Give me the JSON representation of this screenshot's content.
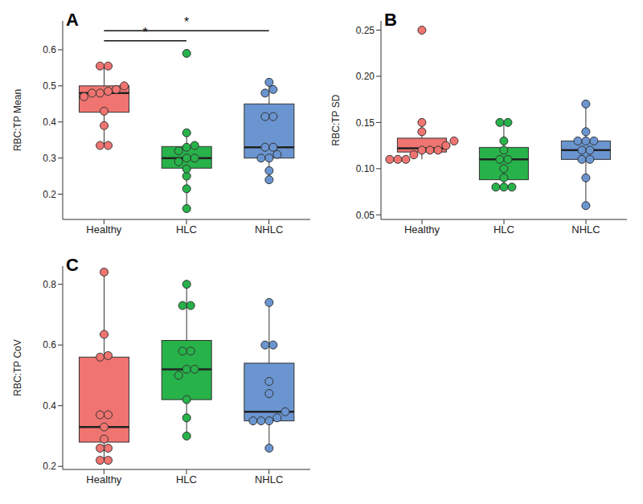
{
  "chart_data": [
    {
      "type": "box",
      "title": "A",
      "y_label": "RBC:TP Mean",
      "categories": [
        "Healthy",
        "HLC",
        "NHLC"
      ],
      "colors": [
        "#f07470",
        "#27b24a",
        "#6a95d0"
      ],
      "points": [
        [
          0.555,
          0.555,
          0.5,
          0.49,
          0.485,
          0.48,
          0.48,
          0.47,
          0.43,
          0.39,
          0.335,
          0.335
        ],
        [
          0.59,
          0.37,
          0.335,
          0.33,
          0.32,
          0.3,
          0.3,
          0.29,
          0.27,
          0.25,
          0.215,
          0.16
        ],
        [
          0.51,
          0.49,
          0.48,
          0.415,
          0.415,
          0.33,
          0.33,
          0.31,
          0.3,
          0.3,
          0.265,
          0.24
        ]
      ],
      "boxes": [
        {
          "q1": 0.427,
          "median": 0.48,
          "q3": 0.5,
          "whisker_low": 0.335,
          "whisker_high": 0.555
        },
        {
          "q1": 0.272,
          "median": 0.3,
          "q3": 0.332,
          "whisker_low": 0.16,
          "whisker_high": 0.37
        },
        {
          "q1": 0.3,
          "median": 0.33,
          "q3": 0.45,
          "whisker_low": 0.24,
          "whisker_high": 0.51
        }
      ],
      "ylim": [
        0.13,
        0.68
      ],
      "yticks": [
        0.2,
        0.3,
        0.4,
        0.5,
        0.6
      ],
      "annotations": [
        {
          "text": "*",
          "from": "Healthy",
          "to": "HLC"
        },
        {
          "text": "*",
          "from": "Healthy",
          "to": "NHLC"
        }
      ]
    },
    {
      "type": "box",
      "title": "B",
      "y_label": "RBC:TP SD",
      "categories": [
        "Healthy",
        "HLC",
        "NHLC"
      ],
      "colors": [
        "#f07470",
        "#27b24a",
        "#6a95d0"
      ],
      "points": [
        [
          0.25,
          0.15,
          0.14,
          0.13,
          0.125,
          0.12,
          0.12,
          0.12,
          0.115,
          0.11,
          0.11,
          0.11
        ],
        [
          0.15,
          0.15,
          0.13,
          0.12,
          0.11,
          0.11,
          0.1,
          0.09,
          0.08,
          0.08,
          0.08
        ],
        [
          0.17,
          0.14,
          0.13,
          0.13,
          0.13,
          0.12,
          0.12,
          0.11,
          0.11,
          0.09,
          0.06
        ]
      ],
      "boxes": [
        {
          "q1": 0.118,
          "median": 0.122,
          "q3": 0.133,
          "whisker_low": 0.11,
          "whisker_high": 0.15
        },
        {
          "q1": 0.088,
          "median": 0.11,
          "q3": 0.123,
          "whisker_low": 0.08,
          "whisker_high": 0.15
        },
        {
          "q1": 0.11,
          "median": 0.12,
          "q3": 0.13,
          "whisker_low": 0.06,
          "whisker_high": 0.17
        }
      ],
      "ylim": [
        0.045,
        0.26
      ],
      "yticks": [
        0.05,
        {
          "value": 0.1,
          "label": "0.10"
        },
        0.15,
        {
          "value": 0.2,
          "label": "0.20"
        },
        0.25
      ]
    },
    {
      "type": "box",
      "title": "C",
      "y_label": "RBC:TP CoV",
      "categories": [
        "Healthy",
        "HLC",
        "NHLC"
      ],
      "colors": [
        "#f07470",
        "#27b24a",
        "#6a95d0"
      ],
      "points": [
        [
          0.84,
          0.635,
          0.565,
          0.56,
          0.37,
          0.37,
          0.33,
          0.29,
          0.26,
          0.26,
          0.22,
          0.22
        ],
        [
          0.8,
          0.73,
          0.73,
          0.58,
          0.58,
          0.52,
          0.52,
          0.5,
          0.42,
          0.36,
          0.3
        ],
        [
          0.74,
          0.6,
          0.6,
          0.48,
          0.44,
          0.38,
          0.36,
          0.35,
          0.35,
          0.35,
          0.26
        ]
      ],
      "boxes": [
        {
          "q1": 0.28,
          "median": 0.33,
          "q3": 0.56,
          "whisker_low": 0.22,
          "whisker_high": 0.84
        },
        {
          "q1": 0.42,
          "median": 0.52,
          "q3": 0.615,
          "whisker_low": 0.3,
          "whisker_high": 0.8
        },
        {
          "q1": 0.35,
          "median": 0.38,
          "q3": 0.54,
          "whisker_low": 0.26,
          "whisker_high": 0.74
        }
      ],
      "ylim": [
        0.19,
        0.86
      ],
      "yticks": [
        0.2,
        0.4,
        0.6,
        0.8
      ]
    }
  ]
}
